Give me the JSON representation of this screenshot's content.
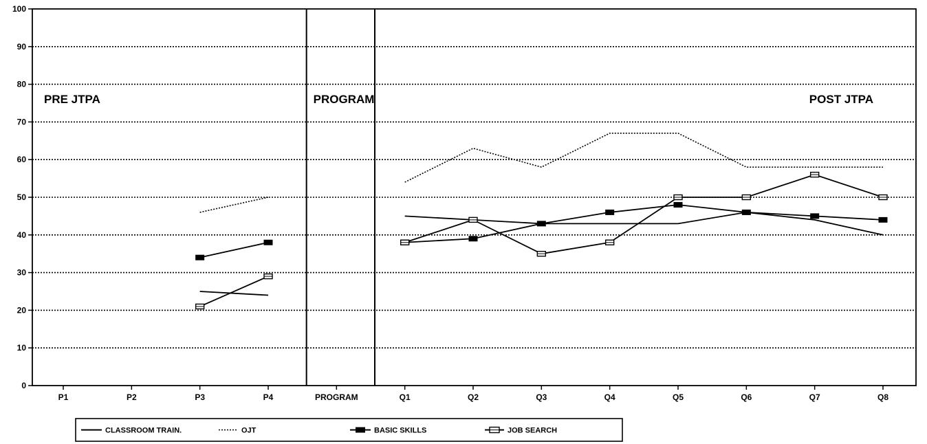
{
  "chart_data": {
    "type": "line",
    "title": "",
    "xlabel": "",
    "ylabel": "",
    "ylim": [
      0,
      100
    ],
    "y_ticks": [
      0,
      10,
      20,
      30,
      40,
      50,
      60,
      70,
      80,
      90,
      100
    ],
    "categories": [
      "P1",
      "P2",
      "P3",
      "P4",
      "PROGRAM",
      "Q1",
      "Q2",
      "Q3",
      "Q4",
      "Q5",
      "Q6",
      "Q7",
      "Q8"
    ],
    "grid": "horizontal dotted",
    "regions": [
      {
        "label": "PRE JTPA",
        "from": "P1",
        "to": "P4"
      },
      {
        "label": "PROGRAM",
        "from": "PROGRAM",
        "to": "PROGRAM"
      },
      {
        "label": "POST JTPA",
        "from": "Q1",
        "to": "Q8"
      }
    ],
    "legend_position": "bottom",
    "series": [
      {
        "name": "CLASSROOM TRAIN.",
        "style": "solid",
        "marker": "none",
        "values": [
          null,
          null,
          25,
          24,
          null,
          45,
          44,
          43,
          43,
          43,
          46,
          44,
          40
        ]
      },
      {
        "name": "OJT",
        "style": "dotted",
        "marker": "none",
        "values": [
          null,
          null,
          46,
          50,
          null,
          54,
          63,
          58,
          67,
          67,
          58,
          58,
          58
        ]
      },
      {
        "name": "BASIC SKILLS",
        "style": "solid",
        "marker": "filled-square",
        "values": [
          null,
          null,
          34,
          38,
          null,
          38,
          39,
          43,
          46,
          48,
          46,
          45,
          44
        ]
      },
      {
        "name": "JOB SEARCH",
        "style": "solid",
        "marker": "open-square",
        "values": [
          null,
          null,
          21,
          29,
          null,
          38,
          44,
          35,
          38,
          50,
          50,
          56,
          50
        ]
      }
    ]
  }
}
